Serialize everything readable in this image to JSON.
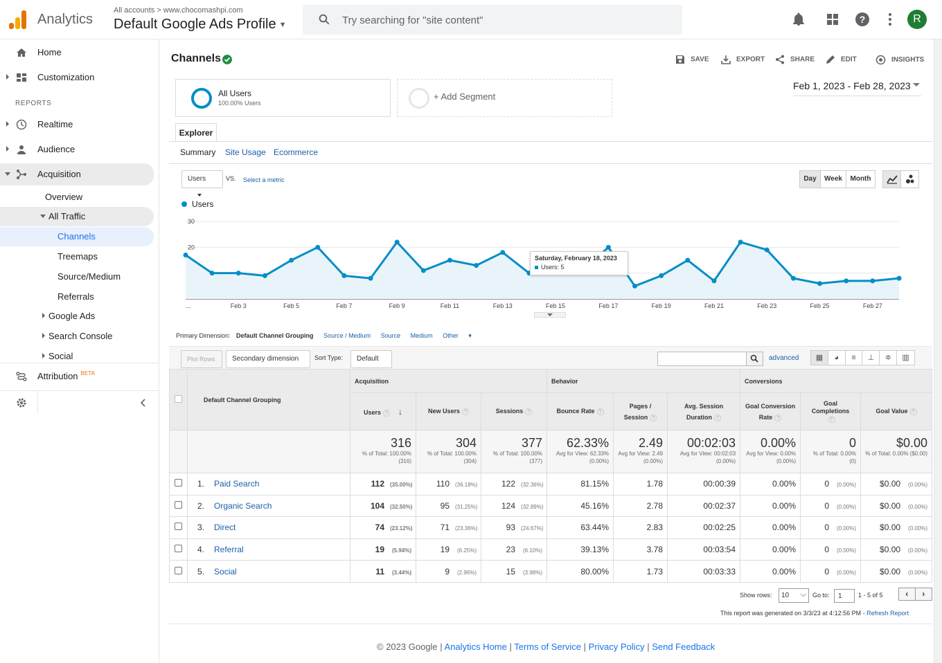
{
  "header": {
    "app_name": "Analytics",
    "account_crumb": "All accounts",
    "property_crumb": "www.chocomashpi.com",
    "view_name": "Default Google Ads Profile",
    "search_placeholder": "Try searching for \"site content\"",
    "avatar_letter": "R"
  },
  "sidebar": {
    "home": "Home",
    "customization": "Customization",
    "reports_heading": "REPORTS",
    "realtime": "Realtime",
    "audience": "Audience",
    "acquisition": "Acquisition",
    "overview": "Overview",
    "all_traffic": "All Traffic",
    "channels": "Channels",
    "treemaps": "Treemaps",
    "source_medium": "Source/Medium",
    "referrals": "Referrals",
    "google_ads": "Google Ads",
    "search_console": "Search Console",
    "social": "Social",
    "attribution": "Attribution",
    "beta": "BETA"
  },
  "report": {
    "title": "Channels",
    "toolbar": {
      "save": "SAVE",
      "export": "EXPORT",
      "share": "SHARE",
      "edit": "EDIT",
      "insights": "INSIGHTS"
    },
    "segment_name": "All Users",
    "segment_pct": "100.00% Users",
    "add_segment": "+ Add Segment",
    "date_range": "Feb 1, 2023 - Feb 28, 2023",
    "tab_explorer": "Explorer",
    "subtabs": [
      "Summary",
      "Site Usage",
      "Ecommerce"
    ],
    "metric_select": "Users",
    "vs": "VS.",
    "select_metric": "Select a metric",
    "periods": [
      "Day",
      "Week",
      "Month"
    ]
  },
  "chart_data": {
    "type": "line",
    "series_name": "Users",
    "color": "#058dc7",
    "ylim": [
      0,
      30
    ],
    "yticks": [
      "30",
      "20",
      "10"
    ],
    "xticks": [
      "...",
      "Feb 3",
      "Feb 5",
      "Feb 7",
      "Feb 9",
      "Feb 11",
      "Feb 13",
      "Feb 15",
      "Feb 17",
      "Feb 19",
      "Feb 21",
      "Feb 23",
      "Feb 25",
      "Feb 27"
    ],
    "x": [
      "Feb 1",
      "Feb 2",
      "Feb 3",
      "Feb 4",
      "Feb 5",
      "Feb 6",
      "Feb 7",
      "Feb 8",
      "Feb 9",
      "Feb 10",
      "Feb 11",
      "Feb 12",
      "Feb 13",
      "Feb 14",
      "Feb 15",
      "Feb 16",
      "Feb 17",
      "Feb 18",
      "Feb 19",
      "Feb 20",
      "Feb 21",
      "Feb 22",
      "Feb 23",
      "Feb 24",
      "Feb 25",
      "Feb 26",
      "Feb 27",
      "Feb 28"
    ],
    "values": [
      17,
      10,
      10,
      9,
      15,
      20,
      9,
      8,
      22,
      11,
      15,
      13,
      18,
      10,
      10,
      11,
      20,
      5,
      9,
      15,
      7,
      22,
      19,
      8,
      6,
      7,
      7,
      8
    ],
    "tooltip_title": "Saturday, February 18, 2023",
    "tooltip_value": "Users: 5"
  },
  "dimensions": {
    "label": "Primary Dimension:",
    "active": "Default Channel Grouping",
    "others": [
      "Source / Medium",
      "Source",
      "Medium",
      "Other"
    ]
  },
  "controls": {
    "plot_rows": "Plot Rows",
    "secondary_dimension": "Secondary dimension",
    "sort_type_label": "Sort Type:",
    "sort_type": "Default",
    "advanced": "advanced"
  },
  "table": {
    "dim_header": "Default Channel Grouping",
    "groups": [
      "Acquisition",
      "Behavior",
      "Conversions"
    ],
    "columns": [
      "Users",
      "New Users",
      "Sessions",
      "Bounce Rate",
      "Pages / Session",
      "Avg. Session Duration",
      "Goal Conversion Rate",
      "Goal Completions",
      "Goal Value"
    ],
    "totals": [
      {
        "big": "316",
        "sm": "% of Total: 100.00% (316)"
      },
      {
        "big": "304",
        "sm": "% of Total: 100.00% (304)"
      },
      {
        "big": "377",
        "sm": "% of Total: 100.00% (377)"
      },
      {
        "big": "62.33%",
        "sm": "Avg for View: 62.33% (0.00%)"
      },
      {
        "big": "2.49",
        "sm": "Avg for View: 2.49 (0.00%)"
      },
      {
        "big": "00:02:03",
        "sm": "Avg for View: 00:02:03 (0.00%)"
      },
      {
        "big": "0.00%",
        "sm": "Avg for View: 0.00% (0.00%)"
      },
      {
        "big": "0",
        "sm": "% of Total: 0.00% (0)"
      },
      {
        "big": "$0.00",
        "sm": "% of Total: 0.00% ($0.00)"
      }
    ],
    "rows": [
      {
        "n": "1.",
        "name": "Paid Search",
        "users": "112",
        "users_p": "(35.00%)",
        "new": "110",
        "new_p": "(36.18%)",
        "sess": "122",
        "sess_p": "(32.36%)",
        "bounce": "81.15%",
        "pps": "1.78",
        "dur": "00:00:39",
        "gcr": "0.00%",
        "gc": "0",
        "gc_p": "(0.00%)",
        "gv": "$0.00",
        "gv_p": "(0.00%)"
      },
      {
        "n": "2.",
        "name": "Organic Search",
        "users": "104",
        "users_p": "(32.50%)",
        "new": "95",
        "new_p": "(31.25%)",
        "sess": "124",
        "sess_p": "(32.89%)",
        "bounce": "45.16%",
        "pps": "2.78",
        "dur": "00:02:37",
        "gcr": "0.00%",
        "gc": "0",
        "gc_p": "(0.00%)",
        "gv": "$0.00",
        "gv_p": "(0.00%)"
      },
      {
        "n": "3.",
        "name": "Direct",
        "users": "74",
        "users_p": "(23.12%)",
        "new": "71",
        "new_p": "(23.36%)",
        "sess": "93",
        "sess_p": "(24.67%)",
        "bounce": "63.44%",
        "pps": "2.83",
        "dur": "00:02:25",
        "gcr": "0.00%",
        "gc": "0",
        "gc_p": "(0.00%)",
        "gv": "$0.00",
        "gv_p": "(0.00%)"
      },
      {
        "n": "4.",
        "name": "Referral",
        "users": "19",
        "users_p": "(5.94%)",
        "new": "19",
        "new_p": "(6.25%)",
        "sess": "23",
        "sess_p": "(6.10%)",
        "bounce": "39.13%",
        "pps": "3.78",
        "dur": "00:03:54",
        "gcr": "0.00%",
        "gc": "0",
        "gc_p": "(0.00%)",
        "gv": "$0.00",
        "gv_p": "(0.00%)"
      },
      {
        "n": "5.",
        "name": "Social",
        "users": "11",
        "users_p": "(3.44%)",
        "new": "9",
        "new_p": "(2.96%)",
        "sess": "15",
        "sess_p": "(3.98%)",
        "bounce": "80.00%",
        "pps": "1.73",
        "dur": "00:03:33",
        "gcr": "0.00%",
        "gc": "0",
        "gc_p": "(0.00%)",
        "gv": "$0.00",
        "gv_p": "(0.00%)"
      }
    ]
  },
  "pager": {
    "show_rows_label": "Show rows:",
    "show_rows": "10",
    "goto_label": "Go to:",
    "goto": "1",
    "range": "1 - 5 of 5"
  },
  "generated": {
    "text": "This report was generated on 3/3/23 at 4:12:56 PM - ",
    "refresh": "Refresh Report"
  },
  "footer": {
    "copyright": "© 2023 Google",
    "links": [
      "Analytics Home",
      "Terms of Service",
      "Privacy Policy",
      "Send Feedback"
    ]
  }
}
